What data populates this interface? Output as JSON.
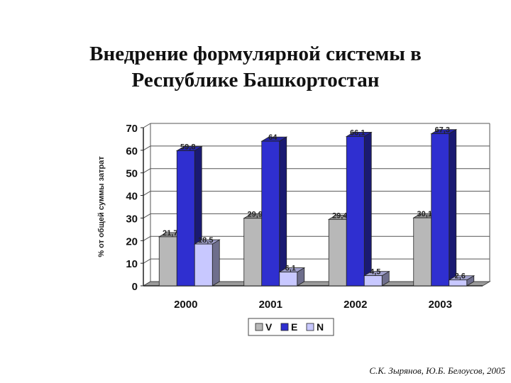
{
  "title": {
    "line1": "Внедрение формулярной системы в",
    "line2": "Республике Башкортостан"
  },
  "caption": "С.К. Зырянов, Ю.Б. Белоусов, 2005",
  "chart_data": {
    "type": "bar",
    "categories": [
      "2000",
      "2001",
      "2002",
      "2003"
    ],
    "series": [
      {
        "name": "V",
        "values": [
          21.7,
          29.9,
          29.4,
          30.1
        ],
        "color": "#b8b8b8"
      },
      {
        "name": "E",
        "values": [
          59.8,
          64,
          66.1,
          67.3
        ],
        "color": "#2f2fd0"
      },
      {
        "name": "N",
        "values": [
          18.5,
          6.1,
          4.5,
          2.6
        ],
        "color": "#c8c8ff"
      }
    ],
    "data_labels": [
      [
        "21,7",
        "59,8",
        "18,5"
      ],
      [
        "29,9",
        "64",
        "6,1"
      ],
      [
        "29,4",
        "66,1",
        "4,5"
      ],
      [
        "30,1",
        "67,3",
        "2,6"
      ]
    ],
    "yticks": [
      "0",
      "10",
      "20",
      "30",
      "40",
      "50",
      "60",
      "70"
    ],
    "ylim": [
      0,
      70
    ],
    "ylabel": "% от общей суммы затрат",
    "legend_position": "bottom",
    "three_d": true,
    "grid": true
  }
}
